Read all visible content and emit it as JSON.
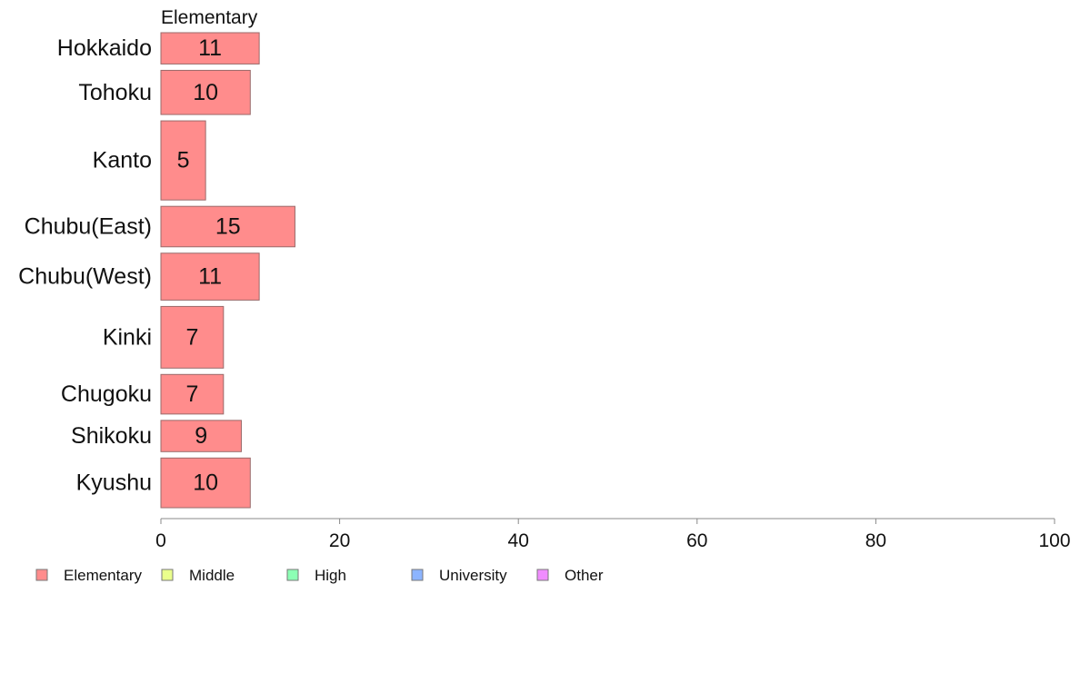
{
  "chart_data": {
    "type": "bar",
    "orientation": "horizontal",
    "panel_label": "Elementary",
    "categories": [
      "Hokkaido",
      "Tohoku",
      "Kanto",
      "Chubu(East)",
      "Chubu(West)",
      "Kinki",
      "Chugoku",
      "Shikoku",
      "Kyushu"
    ],
    "series": [
      {
        "name": "Elementary",
        "color": "#ff8c8c",
        "values": [
          11,
          10,
          5,
          15,
          11,
          7,
          7,
          9,
          10
        ],
        "relative_heights": [
          34,
          48,
          86,
          44,
          51,
          67,
          43,
          34,
          54
        ]
      }
    ],
    "xlim": [
      0,
      100
    ],
    "xticks": [
      "0",
      "20",
      "40",
      "60",
      "80",
      "100"
    ],
    "grid": false,
    "legend": {
      "position": "bottom-left",
      "items": [
        {
          "label": "Elementary",
          "color": "#ff8c8c"
        },
        {
          "label": "Middle",
          "color": "#eaff8c"
        },
        {
          "label": "High",
          "color": "#8cffb4"
        },
        {
          "label": "University",
          "color": "#8cb4ff"
        },
        {
          "label": "Other",
          "color": "#f08cff"
        }
      ]
    },
    "colors": {
      "bar_stroke": "#9a6a6a",
      "axis": "#888888",
      "text": "#111111"
    }
  }
}
